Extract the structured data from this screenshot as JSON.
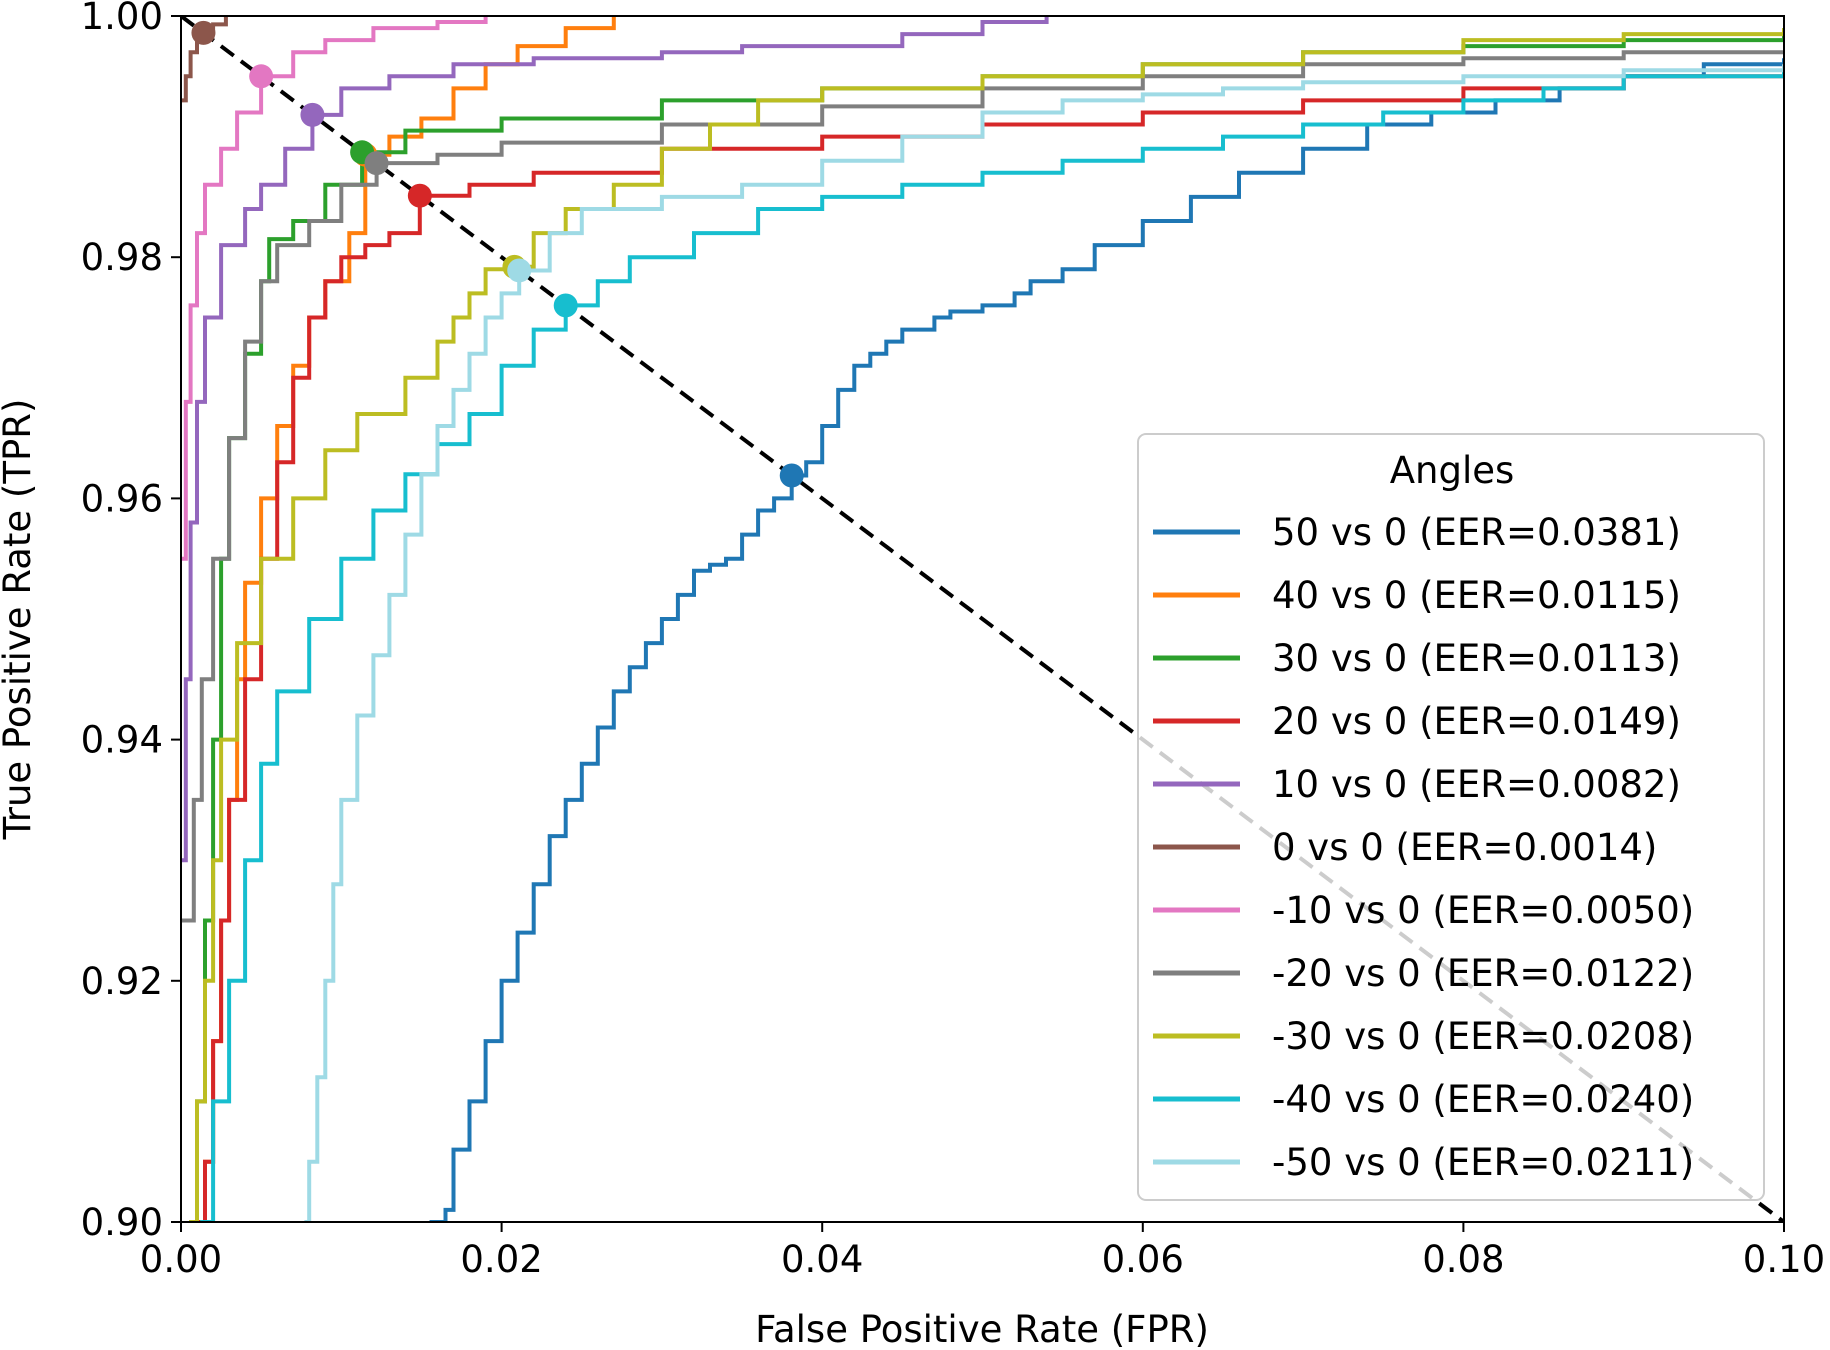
{
  "chart_data": {
    "type": "line",
    "title": "",
    "xlabel": "False Positive Rate (FPR)",
    "ylabel": "True Positive Rate (TPR)",
    "xlim": [
      0.0,
      0.1
    ],
    "ylim": [
      0.9,
      1.0
    ],
    "xticks": [
      "0.00",
      "0.02",
      "0.04",
      "0.06",
      "0.08",
      "0.10"
    ],
    "yticks": [
      "0.90",
      "0.92",
      "0.94",
      "0.96",
      "0.98",
      "1.00"
    ],
    "grid": false,
    "legend": {
      "title": "Angles",
      "position": "lower-right"
    },
    "diagonal": {
      "style": "dashed",
      "color": "#000000",
      "points": [
        [
          0.0,
          1.0
        ],
        [
          0.1,
          0.9
        ]
      ]
    },
    "series": [
      {
        "name": "50 vs 0 (EER=0.0381)",
        "color": "#1f77b4",
        "eer": [
          0.0381,
          0.9619
        ],
        "points": [
          [
            0.0155,
            0.9
          ],
          [
            0.0165,
            0.901
          ],
          [
            0.017,
            0.906
          ],
          [
            0.018,
            0.91
          ],
          [
            0.019,
            0.915
          ],
          [
            0.02,
            0.92
          ],
          [
            0.021,
            0.924
          ],
          [
            0.022,
            0.928
          ],
          [
            0.023,
            0.932
          ],
          [
            0.024,
            0.935
          ],
          [
            0.025,
            0.938
          ],
          [
            0.026,
            0.941
          ],
          [
            0.027,
            0.944
          ],
          [
            0.028,
            0.946
          ],
          [
            0.029,
            0.948
          ],
          [
            0.03,
            0.95
          ],
          [
            0.031,
            0.952
          ],
          [
            0.032,
            0.954
          ],
          [
            0.033,
            0.9545
          ],
          [
            0.034,
            0.955
          ],
          [
            0.035,
            0.957
          ],
          [
            0.036,
            0.959
          ],
          [
            0.037,
            0.96
          ],
          [
            0.0381,
            0.9619
          ],
          [
            0.039,
            0.963
          ],
          [
            0.04,
            0.966
          ],
          [
            0.041,
            0.969
          ],
          [
            0.042,
            0.971
          ],
          [
            0.043,
            0.972
          ],
          [
            0.044,
            0.973
          ],
          [
            0.045,
            0.974
          ],
          [
            0.047,
            0.975
          ],
          [
            0.048,
            0.9755
          ],
          [
            0.05,
            0.976
          ],
          [
            0.052,
            0.977
          ],
          [
            0.053,
            0.978
          ],
          [
            0.055,
            0.979
          ],
          [
            0.057,
            0.981
          ],
          [
            0.06,
            0.983
          ],
          [
            0.063,
            0.985
          ],
          [
            0.066,
            0.987
          ],
          [
            0.07,
            0.989
          ],
          [
            0.074,
            0.991
          ],
          [
            0.078,
            0.992
          ],
          [
            0.082,
            0.993
          ],
          [
            0.086,
            0.994
          ],
          [
            0.09,
            0.995
          ],
          [
            0.093,
            0.995
          ],
          [
            0.095,
            0.996
          ],
          [
            0.098,
            0.996
          ],
          [
            0.1,
            0.9965
          ]
        ]
      },
      {
        "name": "40 vs 0 (EER=0.0115)",
        "color": "#ff7f0e",
        "eer": [
          0.0115,
          0.9885
        ],
        "points": [
          [
            0.0012,
            0.9
          ],
          [
            0.0015,
            0.905
          ],
          [
            0.002,
            0.915
          ],
          [
            0.0025,
            0.925
          ],
          [
            0.003,
            0.935
          ],
          [
            0.0035,
            0.945
          ],
          [
            0.004,
            0.953
          ],
          [
            0.005,
            0.96
          ],
          [
            0.006,
            0.966
          ],
          [
            0.007,
            0.971
          ],
          [
            0.008,
            0.975
          ],
          [
            0.009,
            0.978
          ],
          [
            0.0105,
            0.982
          ],
          [
            0.0115,
            0.9885
          ],
          [
            0.013,
            0.99
          ],
          [
            0.015,
            0.9915
          ],
          [
            0.017,
            0.994
          ],
          [
            0.019,
            0.996
          ],
          [
            0.021,
            0.9975
          ],
          [
            0.024,
            0.999
          ],
          [
            0.027,
            1.0
          ]
        ]
      },
      {
        "name": "30 vs 0 (EER=0.0113)",
        "color": "#2ca02c",
        "eer": [
          0.0113,
          0.9887
        ],
        "points": [
          [
            0.0005,
            0.9
          ],
          [
            0.001,
            0.91
          ],
          [
            0.0015,
            0.925
          ],
          [
            0.002,
            0.94
          ],
          [
            0.0025,
            0.955
          ],
          [
            0.003,
            0.965
          ],
          [
            0.004,
            0.972
          ],
          [
            0.005,
            0.978
          ],
          [
            0.0055,
            0.9815
          ],
          [
            0.007,
            0.983
          ],
          [
            0.009,
            0.986
          ],
          [
            0.0113,
            0.9887
          ],
          [
            0.014,
            0.9905
          ],
          [
            0.02,
            0.9915
          ],
          [
            0.03,
            0.993
          ],
          [
            0.04,
            0.994
          ],
          [
            0.05,
            0.995
          ],
          [
            0.06,
            0.996
          ],
          [
            0.07,
            0.997
          ],
          [
            0.08,
            0.9975
          ],
          [
            0.09,
            0.998
          ],
          [
            0.1,
            0.999
          ]
        ]
      },
      {
        "name": "20 vs 0 (EER=0.0149)",
        "color": "#d62728",
        "eer": [
          0.0149,
          0.9851
        ],
        "points": [
          [
            0.001,
            0.9
          ],
          [
            0.0015,
            0.905
          ],
          [
            0.002,
            0.915
          ],
          [
            0.0025,
            0.925
          ],
          [
            0.003,
            0.935
          ],
          [
            0.004,
            0.945
          ],
          [
            0.005,
            0.955
          ],
          [
            0.006,
            0.963
          ],
          [
            0.007,
            0.97
          ],
          [
            0.008,
            0.975
          ],
          [
            0.009,
            0.978
          ],
          [
            0.01,
            0.98
          ],
          [
            0.0115,
            0.981
          ],
          [
            0.013,
            0.982
          ],
          [
            0.0149,
            0.9851
          ],
          [
            0.018,
            0.986
          ],
          [
            0.022,
            0.987
          ],
          [
            0.03,
            0.989
          ],
          [
            0.04,
            0.99
          ],
          [
            0.05,
            0.991
          ],
          [
            0.06,
            0.992
          ],
          [
            0.07,
            0.993
          ],
          [
            0.08,
            0.994
          ],
          [
            0.09,
            0.995
          ],
          [
            0.097,
            0.995
          ],
          [
            0.1,
            0.996
          ]
        ]
      },
      {
        "name": "10 vs 0 (EER=0.0082)",
        "color": "#9467bd",
        "eer": [
          0.0082,
          0.9918
        ],
        "points": [
          [
            0.0,
            0.93
          ],
          [
            0.0003,
            0.945
          ],
          [
            0.0006,
            0.958
          ],
          [
            0.001,
            0.968
          ],
          [
            0.0015,
            0.975
          ],
          [
            0.0025,
            0.981
          ],
          [
            0.004,
            0.984
          ],
          [
            0.005,
            0.986
          ],
          [
            0.0065,
            0.989
          ],
          [
            0.0082,
            0.9918
          ],
          [
            0.01,
            0.994
          ],
          [
            0.013,
            0.995
          ],
          [
            0.017,
            0.996
          ],
          [
            0.022,
            0.9965
          ],
          [
            0.03,
            0.997
          ],
          [
            0.035,
            0.9975
          ],
          [
            0.045,
            0.9985
          ],
          [
            0.05,
            0.9995
          ],
          [
            0.054,
            1.0
          ]
        ]
      },
      {
        "name": "0 vs 0 (EER=0.0014)",
        "color": "#8c564b",
        "eer": [
          0.0014,
          0.9986
        ],
        "points": [
          [
            0.0,
            0.993
          ],
          [
            0.0003,
            0.995
          ],
          [
            0.0006,
            0.997
          ],
          [
            0.001,
            0.998
          ],
          [
            0.0014,
            0.9986
          ],
          [
            0.002,
            0.9993
          ],
          [
            0.0028,
            1.0
          ]
        ]
      },
      {
        "name": "-10 vs 0 (EER=0.0050)",
        "color": "#e377c2",
        "eer": [
          0.005,
          0.995
        ],
        "points": [
          [
            0.0,
            0.955
          ],
          [
            0.0003,
            0.968
          ],
          [
            0.0006,
            0.976
          ],
          [
            0.001,
            0.982
          ],
          [
            0.0015,
            0.986
          ],
          [
            0.0025,
            0.989
          ],
          [
            0.0035,
            0.992
          ],
          [
            0.005,
            0.995
          ],
          [
            0.007,
            0.997
          ],
          [
            0.009,
            0.998
          ],
          [
            0.012,
            0.999
          ],
          [
            0.016,
            0.9995
          ],
          [
            0.019,
            1.0
          ]
        ]
      },
      {
        "name": "-20 vs 0 (EER=0.0122)",
        "color": "#7f7f7f",
        "eer": [
          0.0122,
          0.9878
        ],
        "points": [
          [
            0.0,
            0.925
          ],
          [
            0.0008,
            0.935
          ],
          [
            0.0013,
            0.945
          ],
          [
            0.002,
            0.955
          ],
          [
            0.003,
            0.965
          ],
          [
            0.004,
            0.973
          ],
          [
            0.005,
            0.978
          ],
          [
            0.006,
            0.981
          ],
          [
            0.008,
            0.983
          ],
          [
            0.01,
            0.986
          ],
          [
            0.0122,
            0.9878
          ],
          [
            0.016,
            0.9885
          ],
          [
            0.02,
            0.9895
          ],
          [
            0.03,
            0.991
          ],
          [
            0.04,
            0.9925
          ],
          [
            0.05,
            0.994
          ],
          [
            0.06,
            0.995
          ],
          [
            0.07,
            0.996
          ],
          [
            0.08,
            0.9965
          ],
          [
            0.09,
            0.997
          ],
          [
            0.1,
            0.997
          ]
        ]
      },
      {
        "name": "-30 vs 0 (EER=0.0208)",
        "color": "#bcbd22",
        "eer": [
          0.0208,
          0.9792
        ],
        "points": [
          [
            0.0005,
            0.9
          ],
          [
            0.001,
            0.91
          ],
          [
            0.0015,
            0.92
          ],
          [
            0.002,
            0.93
          ],
          [
            0.0025,
            0.94
          ],
          [
            0.0035,
            0.948
          ],
          [
            0.005,
            0.955
          ],
          [
            0.007,
            0.96
          ],
          [
            0.009,
            0.964
          ],
          [
            0.011,
            0.967
          ],
          [
            0.014,
            0.97
          ],
          [
            0.016,
            0.973
          ],
          [
            0.017,
            0.975
          ],
          [
            0.018,
            0.977
          ],
          [
            0.019,
            0.979
          ],
          [
            0.0208,
            0.9792
          ],
          [
            0.022,
            0.982
          ],
          [
            0.024,
            0.984
          ],
          [
            0.027,
            0.986
          ],
          [
            0.03,
            0.989
          ],
          [
            0.033,
            0.991
          ],
          [
            0.036,
            0.993
          ],
          [
            0.04,
            0.994
          ],
          [
            0.05,
            0.995
          ],
          [
            0.06,
            0.996
          ],
          [
            0.07,
            0.997
          ],
          [
            0.08,
            0.998
          ],
          [
            0.09,
            0.9985
          ],
          [
            0.1,
            0.999
          ]
        ]
      },
      {
        "name": "-40 vs 0 (EER=0.0240)",
        "color": "#17becf",
        "eer": [
          0.024,
          0.976
        ],
        "points": [
          [
            0.0012,
            0.9
          ],
          [
            0.002,
            0.91
          ],
          [
            0.003,
            0.92
          ],
          [
            0.004,
            0.93
          ],
          [
            0.005,
            0.938
          ],
          [
            0.006,
            0.944
          ],
          [
            0.008,
            0.95
          ],
          [
            0.01,
            0.955
          ],
          [
            0.012,
            0.959
          ],
          [
            0.014,
            0.962
          ],
          [
            0.016,
            0.9645
          ],
          [
            0.018,
            0.967
          ],
          [
            0.02,
            0.971
          ],
          [
            0.022,
            0.974
          ],
          [
            0.024,
            0.976
          ],
          [
            0.026,
            0.978
          ],
          [
            0.028,
            0.98
          ],
          [
            0.032,
            0.982
          ],
          [
            0.036,
            0.984
          ],
          [
            0.04,
            0.985
          ],
          [
            0.045,
            0.986
          ],
          [
            0.05,
            0.987
          ],
          [
            0.055,
            0.988
          ],
          [
            0.06,
            0.989
          ],
          [
            0.065,
            0.99
          ],
          [
            0.07,
            0.991
          ],
          [
            0.075,
            0.992
          ],
          [
            0.08,
            0.993
          ],
          [
            0.085,
            0.994
          ],
          [
            0.09,
            0.995
          ],
          [
            0.095,
            0.995
          ],
          [
            0.1,
            0.9955
          ]
        ]
      },
      {
        "name": "-50 vs 0 (EER=0.0211)",
        "color": "#9edae5",
        "eer": [
          0.0211,
          0.9789
        ],
        "points": [
          [
            0.0077,
            0.9
          ],
          [
            0.008,
            0.905
          ],
          [
            0.0085,
            0.912
          ],
          [
            0.009,
            0.92
          ],
          [
            0.0095,
            0.928
          ],
          [
            0.01,
            0.935
          ],
          [
            0.011,
            0.942
          ],
          [
            0.012,
            0.947
          ],
          [
            0.013,
            0.952
          ],
          [
            0.014,
            0.957
          ],
          [
            0.015,
            0.962
          ],
          [
            0.016,
            0.966
          ],
          [
            0.017,
            0.969
          ],
          [
            0.018,
            0.972
          ],
          [
            0.019,
            0.975
          ],
          [
            0.02,
            0.977
          ],
          [
            0.0211,
            0.9789
          ],
          [
            0.023,
            0.982
          ],
          [
            0.025,
            0.984
          ],
          [
            0.03,
            0.985
          ],
          [
            0.035,
            0.986
          ],
          [
            0.04,
            0.988
          ],
          [
            0.045,
            0.99
          ],
          [
            0.05,
            0.992
          ],
          [
            0.055,
            0.993
          ],
          [
            0.06,
            0.9935
          ],
          [
            0.065,
            0.994
          ],
          [
            0.07,
            0.9945
          ],
          [
            0.08,
            0.995
          ],
          [
            0.09,
            0.9955
          ],
          [
            0.1,
            0.996
          ]
        ]
      }
    ]
  }
}
